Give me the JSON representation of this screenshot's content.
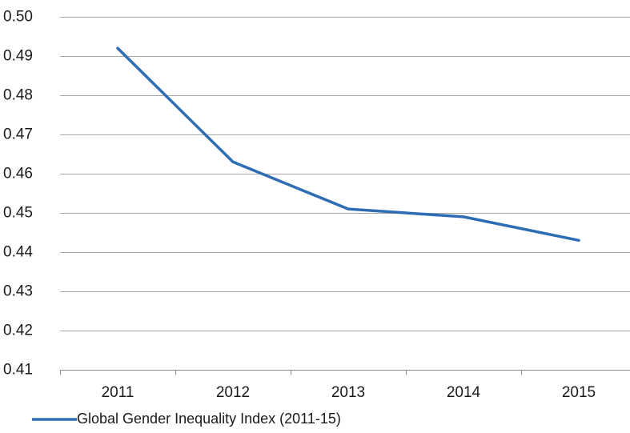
{
  "chart_data": {
    "type": "line",
    "categories": [
      "2011",
      "2012",
      "2013",
      "2014",
      "2015"
    ],
    "series": [
      {
        "name": "Global Gender Inequality Index (2011-15)",
        "values": [
          0.492,
          0.463,
          0.451,
          0.449,
          0.443
        ],
        "color": "#2e6db4"
      }
    ],
    "ylim": [
      0.41,
      0.5
    ],
    "yticks": [
      "0.50",
      "0.49",
      "0.48",
      "0.47",
      "0.46",
      "0.45",
      "0.44",
      "0.43",
      "0.42",
      "0.41"
    ],
    "ytick_values": [
      0.5,
      0.49,
      0.48,
      0.47,
      0.46,
      0.45,
      0.44,
      0.43,
      0.42,
      0.41
    ],
    "grid": true,
    "legend_position": "bottom-left",
    "gridline_color": "#a6a6a6",
    "axis_color": "#8c8c8c"
  }
}
